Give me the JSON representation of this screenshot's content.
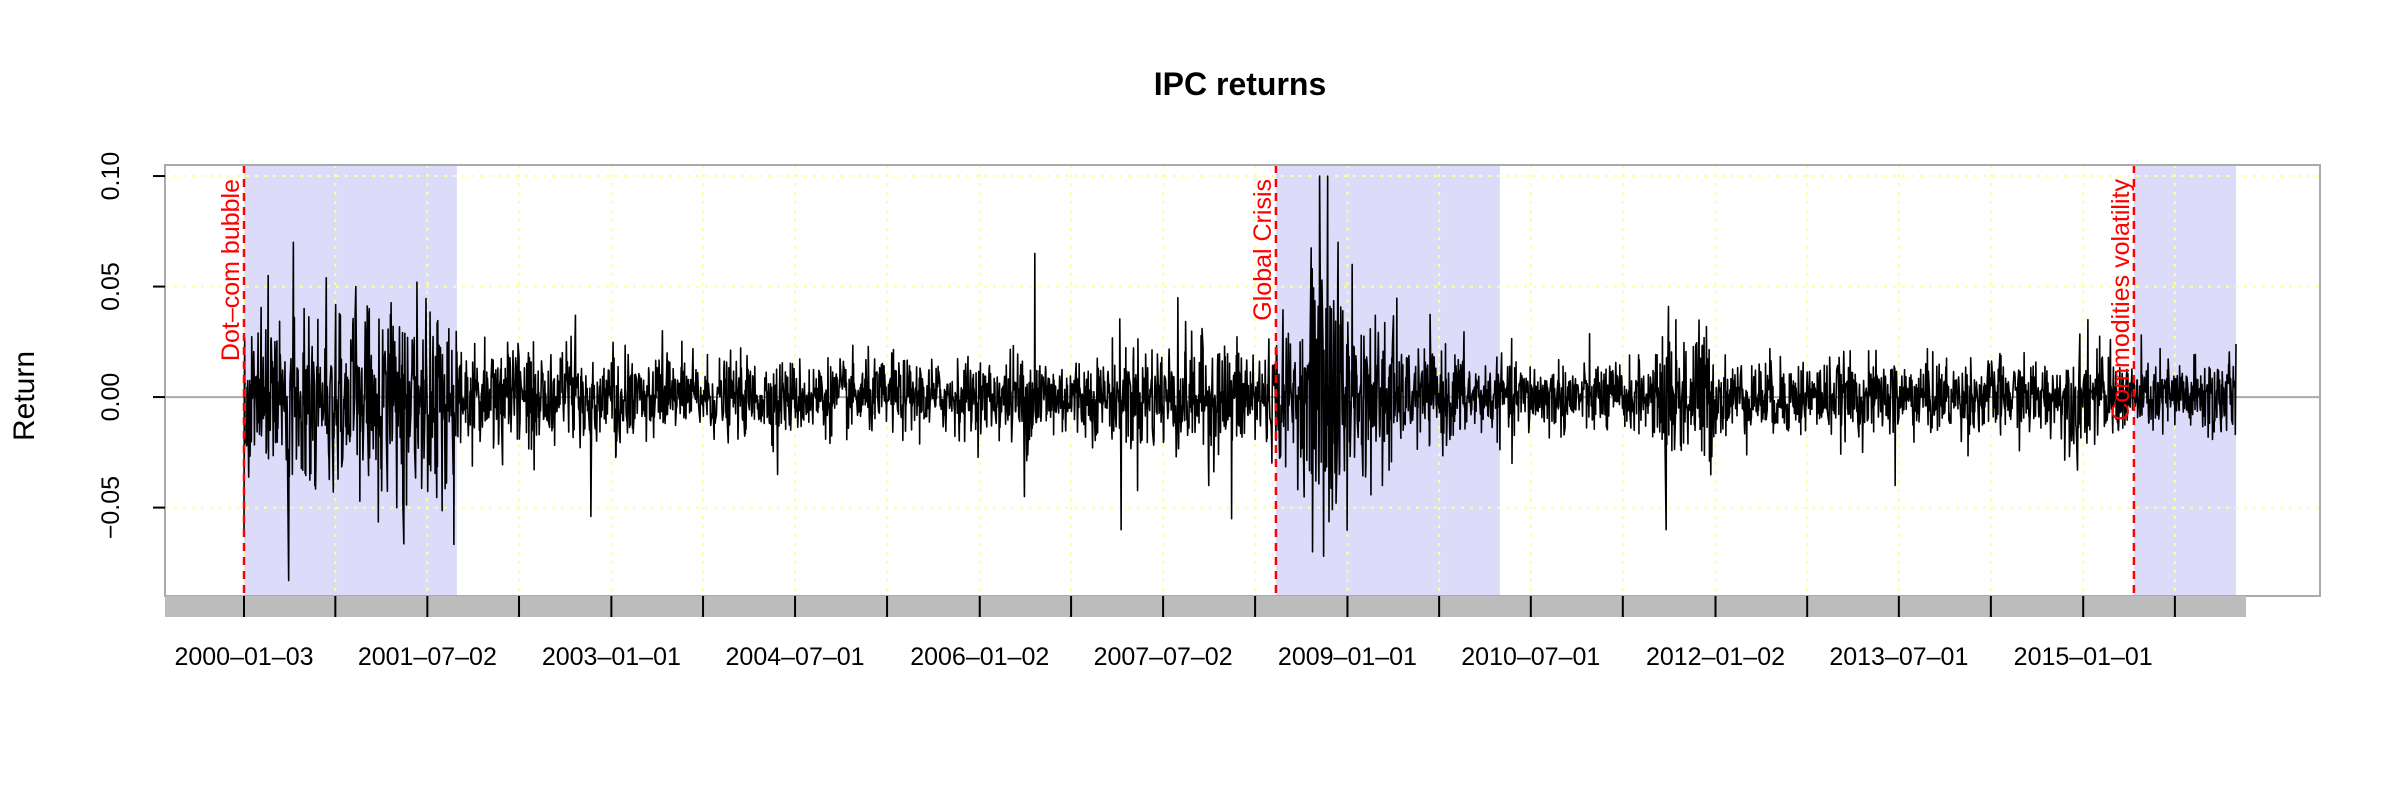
{
  "chart_data": {
    "type": "line",
    "title": "IPC returns",
    "xlabel": "",
    "ylabel": "Return",
    "x_range": [
      "2000-01-03",
      "2016-03-31"
    ],
    "ylim": [
      -0.09,
      0.105
    ],
    "grid": true,
    "grid_color": "#ffff99",
    "line_color": "#000000",
    "zero_line_color": "#aaaaaa",
    "period_fill": "#dcdcfa",
    "period_marker_color": "#ff0000",
    "y_ticks": [
      {
        "value": -0.05,
        "label": "−0.05"
      },
      {
        "value": 0.0,
        "label": "0.00"
      },
      {
        "value": 0.05,
        "label": "0.05"
      },
      {
        "value": 0.1,
        "label": "0.10"
      }
    ],
    "x_ticks": [
      {
        "date": "2000-01-03",
        "label": "2000–01–03"
      },
      {
        "date": "2001-07-02",
        "label": "2001–07–02"
      },
      {
        "date": "2003-01-01",
        "label": "2003–01–01"
      },
      {
        "date": "2004-07-01",
        "label": "2004–07–01"
      },
      {
        "date": "2006-01-02",
        "label": "2006–01–02"
      },
      {
        "date": "2007-07-02",
        "label": "2007–07–02"
      },
      {
        "date": "2009-01-01",
        "label": "2009–01–01"
      },
      {
        "date": "2010-07-01",
        "label": "2010–07–01"
      },
      {
        "date": "2012-01-02",
        "label": "2012–01–02"
      },
      {
        "date": "2013-07-01",
        "label": "2013–07–01"
      },
      {
        "date": "2015-01-01",
        "label": "2015–01–01"
      }
    ],
    "minor_x_ticks": [
      "2000-10-01",
      "2002-04-01",
      "2003-10-01",
      "2005-04-01",
      "2006-10-01",
      "2008-04-01",
      "2009-10-01",
      "2011-04-01",
      "2012-10-01",
      "2014-04-01",
      "2015-10-01"
    ],
    "periods": [
      {
        "label": "Dot–com bubble",
        "start": "2000-01-03",
        "end": "2001-09-28"
      },
      {
        "label": "Global Crisis",
        "start": "2008-06-02",
        "end": "2010-03-31"
      },
      {
        "label": "Commodities volatility",
        "start": "2015-06-01",
        "end": "2016-03-31"
      }
    ],
    "series": [
      {
        "frequency": "daily",
        "values": [
          {
            "date": "2000-01-03",
            "value": -0.06
          },
          {
            "date": "2000-03-15",
            "value": 0.055
          },
          {
            "date": "2000-05-15",
            "value": -0.083
          },
          {
            "date": "2000-05-29",
            "value": 0.07
          },
          {
            "date": "2000-08-01",
            "value": -0.04
          },
          {
            "date": "2000-12-01",
            "value": 0.05
          },
          {
            "date": "2001-04-02",
            "value": -0.05
          },
          {
            "date": "2001-06-01",
            "value": 0.052
          },
          {
            "date": "2001-09-17",
            "value": -0.035
          },
          {
            "date": "2002-09-16",
            "value": 0.037
          },
          {
            "date": "2002-11-01",
            "value": -0.054
          },
          {
            "date": "2003-06-02",
            "value": 0.03
          },
          {
            "date": "2004-05-10",
            "value": -0.035
          },
          {
            "date": "2005-04-15",
            "value": 0.02
          },
          {
            "date": "2006-05-15",
            "value": -0.045
          },
          {
            "date": "2006-06-15",
            "value": 0.065
          },
          {
            "date": "2007-02-27",
            "value": -0.06
          },
          {
            "date": "2007-08-15",
            "value": 0.045
          },
          {
            "date": "2007-11-15",
            "value": -0.04
          },
          {
            "date": "2008-01-22",
            "value": -0.055
          },
          {
            "date": "2008-10-10",
            "value": 0.1
          },
          {
            "date": "2008-10-22",
            "value": -0.072
          },
          {
            "date": "2008-11-03",
            "value": 0.1
          },
          {
            "date": "2009-01-15",
            "value": 0.06
          },
          {
            "date": "2009-04-15",
            "value": -0.04
          },
          {
            "date": "2010-05-06",
            "value": -0.03
          },
          {
            "date": "2011-08-08",
            "value": -0.06
          },
          {
            "date": "2011-08-15",
            "value": 0.041
          },
          {
            "date": "2013-06-20",
            "value": -0.04
          },
          {
            "date": "2014-12-15",
            "value": -0.033
          },
          {
            "date": "2015-01-15",
            "value": 0.035
          },
          {
            "date": "2016-03-31",
            "value": 0.024
          }
        ]
      }
    ]
  }
}
